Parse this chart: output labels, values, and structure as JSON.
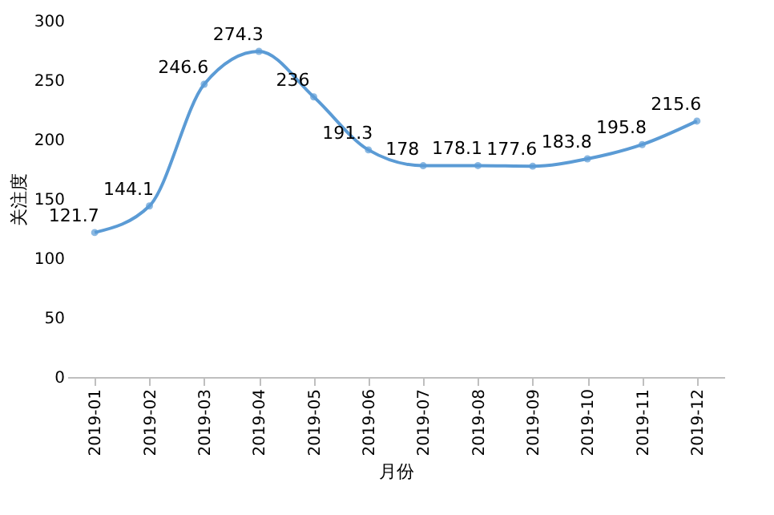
{
  "chart_data": {
    "type": "line",
    "categories": [
      "2019-01",
      "2019-02",
      "2019-03",
      "2019-04",
      "2019-05",
      "2019-06",
      "2019-07",
      "2019-08",
      "2019-09",
      "2019-10",
      "2019-11",
      "2019-12"
    ],
    "series": [
      {
        "color": "#5b9bd5",
        "values": [
          121.7,
          144.1,
          246.6,
          274.3,
          236,
          191.3,
          178,
          178.1,
          177.6,
          183.8,
          195.8,
          215.6
        ]
      }
    ],
    "xlabel": "月份",
    "ylabel": "关注度",
    "ylim": [
      0,
      300
    ],
    "yticks": [
      0,
      50,
      100,
      150,
      200,
      250,
      300
    ],
    "grid": false,
    "marker": "circle",
    "line_style": "solid",
    "data_labels": true
  }
}
